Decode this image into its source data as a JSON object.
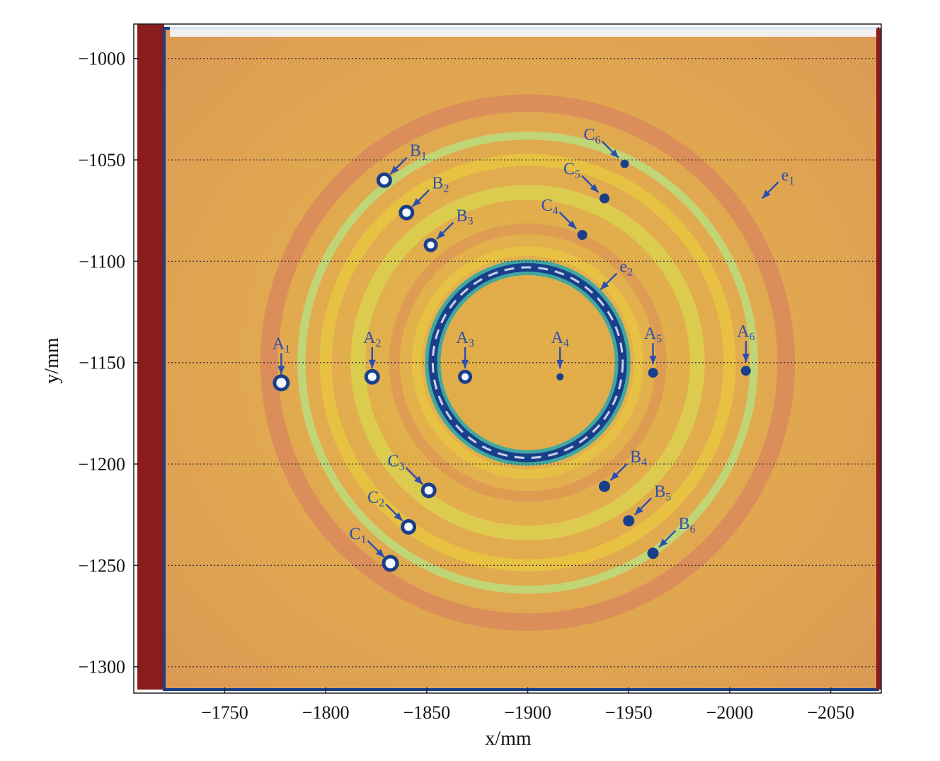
{
  "chart_data": {
    "type": "heatmap",
    "title": "",
    "xlabel": "x/mm",
    "ylabel": "y/mm",
    "x_axis": {
      "range": [
        -1705,
        -2075
      ],
      "reversed": true,
      "ticks": [
        -1750,
        -1800,
        -1850,
        -1900,
        -1950,
        -2000,
        -2050
      ],
      "tick_labels": [
        "−1750",
        "−1800",
        "−1850",
        "−1900",
        "−1950",
        "−2000",
        "−2050"
      ]
    },
    "y_axis": {
      "range": [
        -1313,
        -983
      ],
      "ticks": [
        -1000,
        -1050,
        -1100,
        -1150,
        -1200,
        -1250,
        -1300
      ],
      "tick_labels": [
        "−1000",
        "−1050",
        "−1100",
        "−1150",
        "−1200",
        "−1250",
        "−1300"
      ]
    },
    "gridlines": {
      "horizontal": true,
      "vertical": false,
      "style": "dotted"
    },
    "colormap_colors": [
      "#8b1c1e",
      "#d98a5a",
      "#e0a84a",
      "#e8c840",
      "#d8e050",
      "#b8e080",
      "#40a8a0",
      "#1a3f8a",
      "#f4f8ff"
    ],
    "annotations": [
      {
        "label": "A",
        "sub": "1",
        "x": -1778,
        "y": -1160
      },
      {
        "label": "A",
        "sub": "2",
        "x": -1823,
        "y": -1157
      },
      {
        "label": "A",
        "sub": "3",
        "x": -1869,
        "y": -1157
      },
      {
        "label": "A",
        "sub": "4",
        "x": -1916,
        "y": -1157
      },
      {
        "label": "A",
        "sub": "5",
        "x": -1962,
        "y": -1155
      },
      {
        "label": "A",
        "sub": "6",
        "x": -2008,
        "y": -1154
      },
      {
        "label": "B",
        "sub": "1",
        "x": -1829,
        "y": -1060
      },
      {
        "label": "B",
        "sub": "2",
        "x": -1840,
        "y": -1076
      },
      {
        "label": "B",
        "sub": "3",
        "x": -1852,
        "y": -1092
      },
      {
        "label": "B",
        "sub": "4",
        "x": -1938,
        "y": -1211
      },
      {
        "label": "B",
        "sub": "5",
        "x": -1950,
        "y": -1228
      },
      {
        "label": "B",
        "sub": "6",
        "x": -1962,
        "y": -1244
      },
      {
        "label": "C",
        "sub": "1",
        "x": -1832,
        "y": -1249
      },
      {
        "label": "C",
        "sub": "2",
        "x": -1841,
        "y": -1231
      },
      {
        "label": "C",
        "sub": "3",
        "x": -1851,
        "y": -1213
      },
      {
        "label": "C",
        "sub": "4",
        "x": -1927,
        "y": -1087
      },
      {
        "label": "C",
        "sub": "5",
        "x": -1938,
        "y": -1069
      },
      {
        "label": "C",
        "sub": "6",
        "x": -1948,
        "y": -1052
      },
      {
        "label": "e",
        "sub": "1",
        "x": -2015,
        "y": -1070
      },
      {
        "label": "e",
        "sub": "2",
        "x": -1935,
        "y": -1115
      }
    ],
    "features": {
      "inner_ring": {
        "center": [
          -1900,
          -1150
        ],
        "radius_mm": 47
      },
      "outer_ring": {
        "center": [
          -1900,
          -1150
        ],
        "radius_mm": 125
      }
    }
  }
}
